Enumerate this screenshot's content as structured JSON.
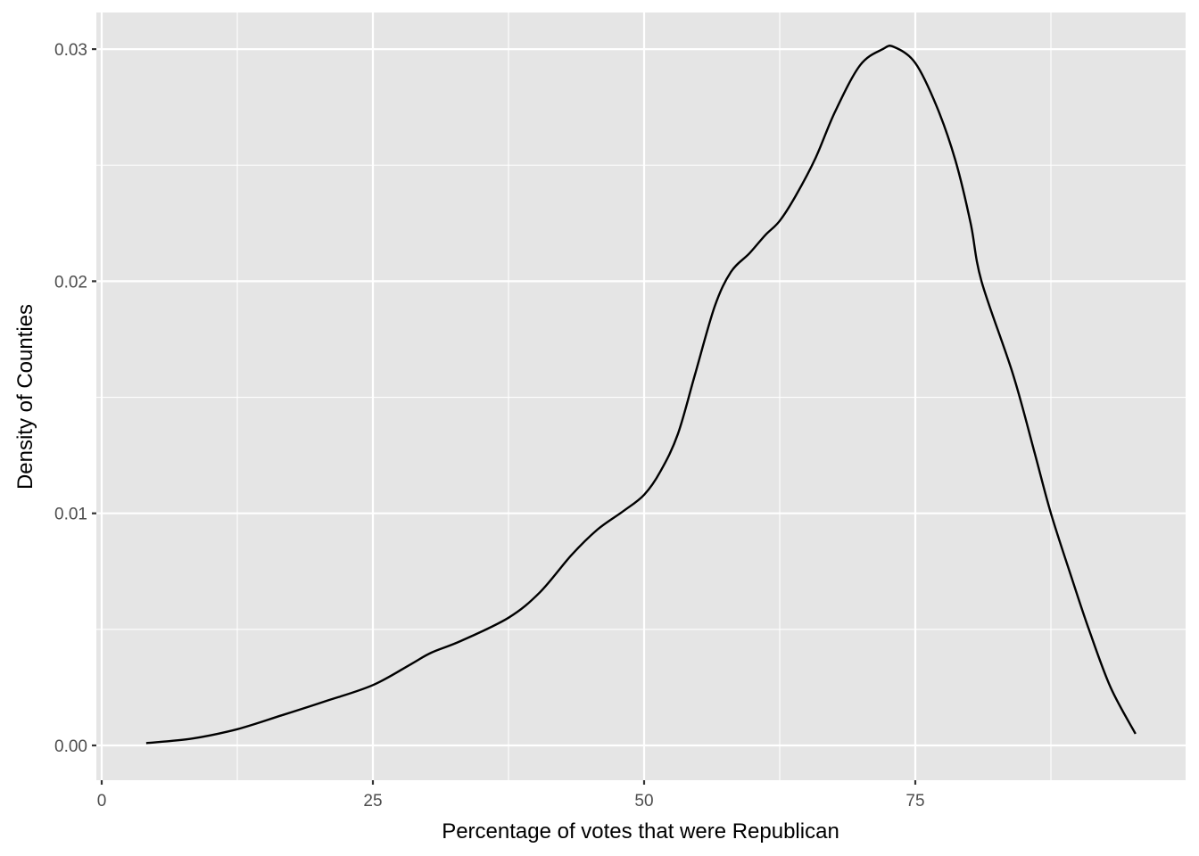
{
  "chart_data": {
    "type": "line",
    "subtype": "density",
    "title": "",
    "xlabel": "Percentage of votes that were Republican",
    "ylabel": "Density of Counties",
    "xlim": [
      -0.5,
      99.9
    ],
    "ylim": [
      -0.0015,
      0.0315
    ],
    "x_ticks": [
      0,
      25,
      50,
      75
    ],
    "x_tick_labels": [
      "0",
      "25",
      "50",
      "75"
    ],
    "y_ticks": [
      0.0,
      0.01,
      0.02,
      0.03
    ],
    "y_tick_labels": [
      "0.00",
      "0.01",
      "0.02",
      "0.03"
    ],
    "x_minor_grid": [
      12.5,
      37.5,
      62.5,
      87.5
    ],
    "y_minor_grid": [
      0.005,
      0.015,
      0.025
    ],
    "grid": true,
    "legend": null,
    "panel_background": "#e5e5e5",
    "grid_color": "#ffffff",
    "line_color": "#000000",
    "series": [
      {
        "name": "density",
        "x": [
          4.1,
          8.4,
          12.5,
          16.6,
          20.6,
          25.0,
          28.5,
          30.4,
          33.1,
          37.5,
          40.4,
          43.3,
          45.7,
          48.1,
          50.0,
          51.5,
          53.1,
          54.7,
          56.5,
          58.0,
          59.7,
          61.2,
          62.5,
          64.0,
          65.8,
          67.6,
          69.9,
          72.0,
          73.0,
          75.0,
          77.0,
          78.7,
          80.1,
          81.1,
          84.0,
          86.0,
          87.5,
          89.5,
          91.0,
          93.0,
          95.3
        ],
        "y": [
          0.0001,
          0.0003,
          0.0007,
          0.0013,
          0.0019,
          0.0026,
          0.0035,
          0.004,
          0.0045,
          0.0055,
          0.0066,
          0.0082,
          0.0093,
          0.0101,
          0.0108,
          0.0118,
          0.0134,
          0.016,
          0.0189,
          0.0204,
          0.0212,
          0.022,
          0.0226,
          0.0237,
          0.0253,
          0.0273,
          0.0293,
          0.03,
          0.0301,
          0.0294,
          0.0275,
          0.0252,
          0.0225,
          0.02,
          0.016,
          0.0126,
          0.01,
          0.0071,
          0.005,
          0.0025,
          0.0005
        ]
      }
    ]
  }
}
